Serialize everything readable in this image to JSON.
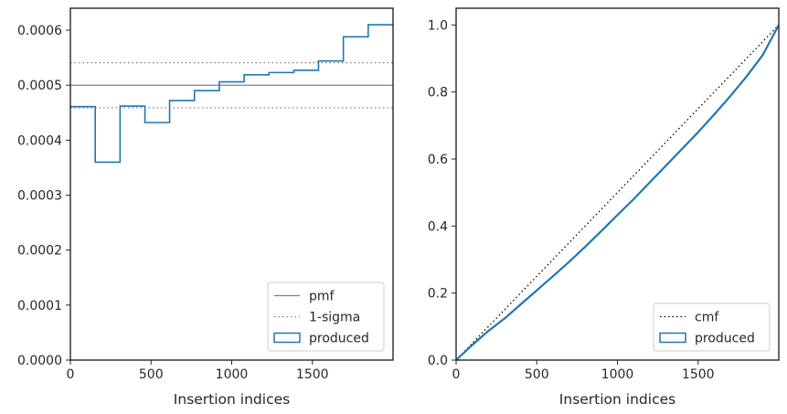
{
  "chart_data": [
    {
      "type": "step",
      "xlabel": "Insertion indices",
      "ylabel": "",
      "xlim": [
        0,
        2000
      ],
      "ylim": [
        0,
        0.00064
      ],
      "x_ticks": [
        0,
        500,
        1000,
        1500
      ],
      "x_tick_labels": [
        "0",
        "500",
        "1000",
        "1500"
      ],
      "y_ticks": [
        0,
        0.0001,
        0.0002,
        0.0003,
        0.0004,
        0.0005,
        0.0006
      ],
      "y_tick_labels": [
        "0.0000",
        "0.0001",
        "0.0002",
        "0.0003",
        "0.0004",
        "0.0005",
        "0.0006"
      ],
      "legend_position": "lower right",
      "reference_lines": [
        {
          "name": "pmf",
          "value": 0.0005,
          "style": "solid",
          "color": "#808080"
        },
        {
          "name": "1-sigma",
          "values": [
            0.000459,
            0.000541
          ],
          "style": "dotted",
          "color": "#808080"
        }
      ],
      "series": [
        {
          "name": "produced",
          "color": "#1f77b4",
          "bin_edges": [
            0,
            154,
            308,
            462,
            615,
            769,
            923,
            1077,
            1231,
            1385,
            1538,
            1692,
            1846,
            2000
          ],
          "values": [
            0.000461,
            0.00036,
            0.000462,
            0.000432,
            0.000472,
            0.00049,
            0.000506,
            0.000519,
            0.000523,
            0.000527,
            0.000544,
            0.000588,
            0.00061
          ]
        }
      ]
    },
    {
      "type": "line",
      "xlabel": "Insertion indices",
      "ylabel": "",
      "xlim": [
        0,
        2000
      ],
      "ylim": [
        0,
        1.05
      ],
      "x_ticks": [
        0,
        500,
        1000,
        1500
      ],
      "x_tick_labels": [
        "0",
        "500",
        "1000",
        "1500"
      ],
      "y_ticks": [
        0,
        0.2,
        0.4,
        0.6,
        0.8,
        1.0
      ],
      "y_tick_labels": [
        "0.0",
        "0.2",
        "0.4",
        "0.6",
        "0.8",
        "1.0"
      ],
      "legend_position": "lower right",
      "series": [
        {
          "name": "cmf",
          "style": "dotted",
          "color": "#000000",
          "x": [
            0,
            2000
          ],
          "y": [
            0,
            1.0
          ]
        },
        {
          "name": "produced",
          "color": "#1f77b4",
          "x": [
            0,
            100,
            200,
            300,
            400,
            500,
            600,
            700,
            800,
            900,
            1000,
            1100,
            1200,
            1300,
            1400,
            1500,
            1600,
            1700,
            1800,
            1900,
            2000
          ],
          "y": [
            0,
            0.045,
            0.087,
            0.124,
            0.166,
            0.208,
            0.25,
            0.293,
            0.338,
            0.385,
            0.433,
            0.48,
            0.53,
            0.58,
            0.63,
            0.68,
            0.733,
            0.788,
            0.846,
            0.91,
            1.0
          ]
        }
      ]
    }
  ]
}
